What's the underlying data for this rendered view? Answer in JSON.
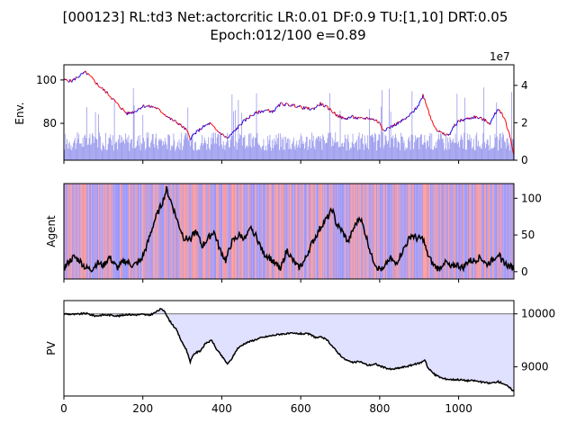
{
  "chart_data": [
    {
      "type": "line",
      "title_line1": "[000123] RL:td3 Net:actorcritic LR:0.01 DF:0.9 TU:[1,10] DRT:0.05",
      "title_line2": "Epoch:012/100 e=0.89",
      "ylabel": "Env.",
      "xlim": [
        0,
        1140
      ],
      "ylim": [
        63,
        107
      ],
      "yticks": [
        80,
        100
      ],
      "price_series": {
        "name": "price",
        "colors": [
          "#ff0000",
          "#0000ff"
        ],
        "knots": [
          [
            0,
            100
          ],
          [
            20,
            99.5
          ],
          [
            40,
            102
          ],
          [
            55,
            103.5
          ],
          [
            70,
            101
          ],
          [
            90,
            97
          ],
          [
            110,
            94
          ],
          [
            125,
            91
          ],
          [
            140,
            88
          ],
          [
            160,
            84.5
          ],
          [
            180,
            85.5
          ],
          [
            200,
            88
          ],
          [
            230,
            87.5
          ],
          [
            250,
            85
          ],
          [
            270,
            82
          ],
          [
            290,
            80
          ],
          [
            310,
            77
          ],
          [
            320,
            73
          ],
          [
            330,
            75
          ],
          [
            350,
            78
          ],
          [
            370,
            80
          ],
          [
            385,
            77
          ],
          [
            400,
            75
          ],
          [
            415,
            73
          ],
          [
            430,
            76
          ],
          [
            450,
            80
          ],
          [
            470,
            83
          ],
          [
            490,
            85
          ],
          [
            510,
            86
          ],
          [
            530,
            85.5
          ],
          [
            550,
            89
          ],
          [
            570,
            88.5
          ],
          [
            590,
            88
          ],
          [
            610,
            87
          ],
          [
            630,
            86.5
          ],
          [
            650,
            89
          ],
          [
            670,
            87
          ],
          [
            690,
            84
          ],
          [
            710,
            82
          ],
          [
            730,
            83
          ],
          [
            750,
            82
          ],
          [
            770,
            82.5
          ],
          [
            790,
            81.5
          ],
          [
            800,
            80
          ],
          [
            810,
            77
          ],
          [
            830,
            78.5
          ],
          [
            850,
            80.5
          ],
          [
            870,
            82.5
          ],
          [
            890,
            86.5
          ],
          [
            900,
            89
          ],
          [
            910,
            93
          ],
          [
            920,
            88
          ],
          [
            930,
            82
          ],
          [
            945,
            77
          ],
          [
            960,
            75
          ],
          [
            975,
            74.5
          ],
          [
            990,
            79
          ],
          [
            1000,
            81
          ],
          [
            1020,
            82
          ],
          [
            1040,
            83
          ],
          [
            1060,
            82
          ],
          [
            1080,
            80
          ],
          [
            1100,
            87
          ],
          [
            1115,
            83
          ],
          [
            1130,
            74
          ],
          [
            1140,
            66
          ]
        ]
      },
      "right_axis": {
        "label": "1e7",
        "ticks": [
          0,
          2,
          4
        ],
        "ylim": [
          0,
          5.1
        ],
        "tick_labels": [
          "0",
          "2",
          "4"
        ]
      },
      "volume_series": {
        "name": "volume",
        "color": "#9999ee",
        "typical": 1.0,
        "max": 4.0,
        "unit": "1e7"
      }
    },
    {
      "type": "line",
      "ylabel": "Agent",
      "xlim": [
        0,
        1140
      ],
      "right_axis": {
        "ticks": [
          0,
          50,
          100
        ],
        "tick_labels": [
          "0",
          "50",
          "100"
        ],
        "ylim": [
          -10,
          120
        ]
      },
      "action_colors": [
        "#ff9999",
        "#9999ff",
        "#bb99dd"
      ],
      "agent_series": {
        "name": "agent",
        "color": "#000000",
        "knots": [
          [
            0,
            5
          ],
          [
            10,
            12
          ],
          [
            25,
            20
          ],
          [
            40,
            15
          ],
          [
            55,
            5
          ],
          [
            70,
            3
          ],
          [
            85,
            12
          ],
          [
            100,
            8
          ],
          [
            115,
            20
          ],
          [
            135,
            5
          ],
          [
            155,
            15
          ],
          [
            175,
            8
          ],
          [
            195,
            15
          ],
          [
            210,
            35
          ],
          [
            230,
            70
          ],
          [
            250,
            95
          ],
          [
            260,
            112
          ],
          [
            275,
            90
          ],
          [
            290,
            65
          ],
          [
            305,
            45
          ],
          [
            320,
            45
          ],
          [
            335,
            55
          ],
          [
            350,
            35
          ],
          [
            365,
            45
          ],
          [
            380,
            55
          ],
          [
            395,
            30
          ],
          [
            410,
            15
          ],
          [
            425,
            40
          ],
          [
            445,
            50
          ],
          [
            460,
            45
          ],
          [
            475,
            60
          ],
          [
            490,
            45
          ],
          [
            505,
            25
          ],
          [
            520,
            20
          ],
          [
            535,
            10
          ],
          [
            550,
            5
          ],
          [
            565,
            30
          ],
          [
            580,
            15
          ],
          [
            595,
            5
          ],
          [
            610,
            15
          ],
          [
            625,
            35
          ],
          [
            640,
            50
          ],
          [
            655,
            65
          ],
          [
            670,
            75
          ],
          [
            680,
            85
          ],
          [
            690,
            65
          ],
          [
            705,
            55
          ],
          [
            720,
            40
          ],
          [
            735,
            60
          ],
          [
            750,
            75
          ],
          [
            765,
            50
          ],
          [
            780,
            20
          ],
          [
            795,
            5
          ],
          [
            810,
            2
          ],
          [
            825,
            20
          ],
          [
            840,
            10
          ],
          [
            855,
            25
          ],
          [
            870,
            40
          ],
          [
            880,
            50
          ],
          [
            895,
            45
          ],
          [
            910,
            45
          ],
          [
            920,
            25
          ],
          [
            935,
            10
          ],
          [
            950,
            3
          ],
          [
            965,
            15
          ],
          [
            980,
            5
          ],
          [
            995,
            10
          ],
          [
            1010,
            5
          ],
          [
            1025,
            15
          ],
          [
            1040,
            15
          ],
          [
            1055,
            20
          ],
          [
            1070,
            10
          ],
          [
            1085,
            15
          ],
          [
            1100,
            25
          ],
          [
            1110,
            15
          ],
          [
            1125,
            8
          ],
          [
            1140,
            5
          ]
        ]
      }
    },
    {
      "type": "area",
      "ylabel": "PV",
      "xlabel": "",
      "xlim": [
        0,
        1140
      ],
      "xticks": [
        0,
        200,
        400,
        600,
        800,
        1000
      ],
      "xtick_labels": [
        "0",
        "200",
        "400",
        "600",
        "800",
        "1000"
      ],
      "right_axis": {
        "ticks": [
          9000,
          10000
        ],
        "tick_labels": [
          "9000",
          "10000"
        ],
        "ylim": [
          8450,
          10250
        ]
      },
      "baseline": 10000,
      "fill_color": "#e0e0ff",
      "pv_series": {
        "name": "PV",
        "color": "#000000",
        "knots": [
          [
            0,
            10000
          ],
          [
            30,
            9990
          ],
          [
            55,
            10010
          ],
          [
            80,
            9960
          ],
          [
            100,
            9980
          ],
          [
            120,
            9975
          ],
          [
            140,
            9960
          ],
          [
            160,
            9990
          ],
          [
            180,
            9980
          ],
          [
            200,
            9990
          ],
          [
            215,
            9970
          ],
          [
            230,
            10020
          ],
          [
            245,
            10090
          ],
          [
            255,
            10060
          ],
          [
            265,
            9900
          ],
          [
            285,
            9700
          ],
          [
            300,
            9450
          ],
          [
            310,
            9330
          ],
          [
            320,
            9100
          ],
          [
            330,
            9250
          ],
          [
            345,
            9300
          ],
          [
            360,
            9450
          ],
          [
            375,
            9500
          ],
          [
            385,
            9350
          ],
          [
            400,
            9200
          ],
          [
            415,
            9050
          ],
          [
            425,
            9150
          ],
          [
            440,
            9350
          ],
          [
            460,
            9450
          ],
          [
            480,
            9500
          ],
          [
            500,
            9550
          ],
          [
            520,
            9580
          ],
          [
            550,
            9620
          ],
          [
            580,
            9630
          ],
          [
            620,
            9620
          ],
          [
            640,
            9550
          ],
          [
            655,
            9560
          ],
          [
            670,
            9480
          ],
          [
            690,
            9300
          ],
          [
            710,
            9150
          ],
          [
            730,
            9080
          ],
          [
            750,
            9100
          ],
          [
            770,
            9030
          ],
          [
            790,
            9050
          ],
          [
            810,
            8990
          ],
          [
            830,
            8950
          ],
          [
            850,
            8980
          ],
          [
            870,
            9010
          ],
          [
            890,
            9050
          ],
          [
            905,
            9080
          ],
          [
            915,
            9140
          ],
          [
            922,
            8980
          ],
          [
            940,
            8850
          ],
          [
            960,
            8780
          ],
          [
            980,
            8760
          ],
          [
            1000,
            8760
          ],
          [
            1020,
            8740
          ],
          [
            1040,
            8740
          ],
          [
            1060,
            8710
          ],
          [
            1080,
            8690
          ],
          [
            1100,
            8720
          ],
          [
            1115,
            8680
          ],
          [
            1130,
            8600
          ],
          [
            1140,
            8540
          ]
        ]
      }
    }
  ]
}
